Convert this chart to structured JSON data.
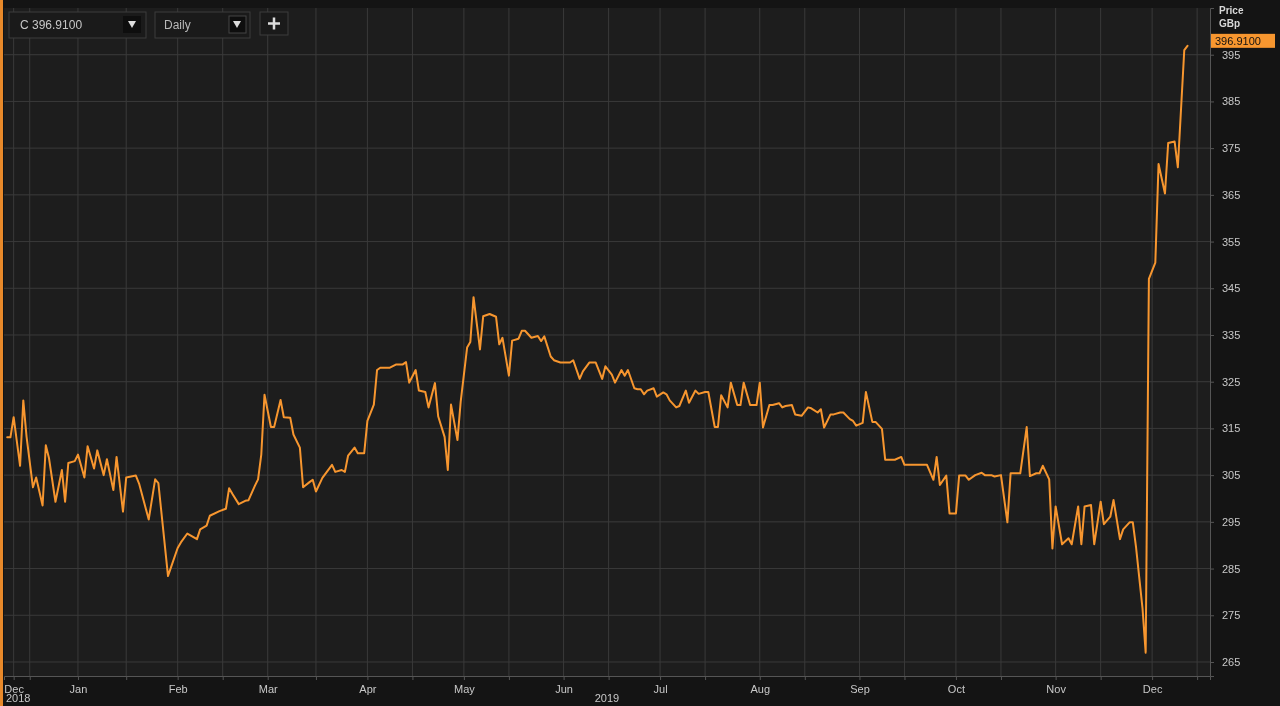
{
  "chart_data": {
    "type": "line",
    "ylabel": "Price GBp",
    "xlim": [
      "2018-12-09",
      "2019-12-19"
    ],
    "ylim": [
      262,
      405
    ],
    "yticks": [
      265,
      275,
      285,
      295,
      305,
      315,
      325,
      335,
      345,
      355,
      365,
      375,
      385,
      395
    ],
    "xticks": [
      {
        "value": "2018-12-12",
        "label": "Dec"
      },
      {
        "value": "2018-12-17",
        "label": null
      },
      {
        "value": "2019-01-01",
        "label": "Jan"
      },
      {
        "value": "2019-01-16",
        "label": null
      },
      {
        "value": "2019-02-01",
        "label": "Feb"
      },
      {
        "value": "2019-02-15",
        "label": null
      },
      {
        "value": "2019-03-01",
        "label": "Mar"
      },
      {
        "value": "2019-03-16",
        "label": null
      },
      {
        "value": "2019-04-01",
        "label": "Apr"
      },
      {
        "value": "2019-04-15",
        "label": null
      },
      {
        "value": "2019-05-01",
        "label": "May"
      },
      {
        "value": "2019-05-15",
        "label": null
      },
      {
        "value": "2019-06-01",
        "label": "Jun"
      },
      {
        "value": "2019-06-15",
        "label": null
      },
      {
        "value": "2019-07-01",
        "label": "Jul"
      },
      {
        "value": "2019-07-15",
        "label": null
      },
      {
        "value": "2019-08-01",
        "label": "Aug"
      },
      {
        "value": "2019-08-15",
        "label": null
      },
      {
        "value": "2019-09-01",
        "label": "Sep"
      },
      {
        "value": "2019-09-15",
        "label": null
      },
      {
        "value": "2019-10-01",
        "label": "Oct"
      },
      {
        "value": "2019-10-15",
        "label": null
      },
      {
        "value": "2019-11-01",
        "label": "Nov"
      },
      {
        "value": "2019-11-15",
        "label": null
      },
      {
        "value": "2019-12-01",
        "label": "Dec"
      },
      {
        "value": "2019-12-15",
        "label": null
      }
    ],
    "grid": true,
    "marker": "none",
    "line_style": "solid",
    "annotations": [
      "2018",
      "2019",
      "C 396.9100",
      "Daily",
      "396.9100"
    ],
    "series": [
      {
        "color": "#f7962f",
        "x": [
          "2018-12-10",
          "2018-12-11",
          "2018-12-12",
          "2018-12-14",
          "2018-12-15",
          "2018-12-16",
          "2018-12-18",
          "2018-12-19",
          "2018-12-21",
          "2018-12-22",
          "2018-12-23",
          "2018-12-25",
          "2018-12-27",
          "2018-12-28",
          "2018-12-29",
          "2018-12-31",
          "2019-01-01",
          "2019-01-03",
          "2019-01-04",
          "2019-01-06",
          "2019-01-07",
          "2019-01-09",
          "2019-01-10",
          "2019-01-12",
          "2019-01-13",
          "2019-01-15",
          "2019-01-16",
          "2019-01-19",
          "2019-01-20",
          "2019-01-23",
          "2019-01-25",
          "2019-01-26",
          "2019-01-29",
          "2019-01-30",
          "2019-02-01",
          "2019-02-02",
          "2019-02-04",
          "2019-02-07",
          "2019-02-08",
          "2019-02-10",
          "2019-02-11",
          "2019-02-14",
          "2019-02-16",
          "2019-02-17",
          "2019-02-18",
          "2019-02-20",
          "2019-02-22",
          "2019-02-23",
          "2019-02-25",
          "2019-02-26",
          "2019-02-27",
          "2019-02-28",
          "2019-03-02",
          "2019-03-03",
          "2019-03-05",
          "2019-03-06",
          "2019-03-08",
          "2019-03-09",
          "2019-03-11",
          "2019-03-12",
          "2019-03-14",
          "2019-03-15",
          "2019-03-16",
          "2019-03-18",
          "2019-03-21",
          "2019-03-22",
          "2019-03-24",
          "2019-03-25",
          "2019-03-26",
          "2019-03-28",
          "2019-03-29",
          "2019-03-31",
          "2019-04-01",
          "2019-04-03",
          "2019-04-04",
          "2019-04-05",
          "2019-04-08",
          "2019-04-10",
          "2019-04-12",
          "2019-04-13",
          "2019-04-14",
          "2019-04-16",
          "2019-04-17",
          "2019-04-19",
          "2019-04-20",
          "2019-04-22",
          "2019-04-23",
          "2019-04-25",
          "2019-04-26",
          "2019-04-27",
          "2019-04-29",
          "2019-04-30",
          "2019-05-02",
          "2019-05-03",
          "2019-05-04",
          "2019-05-06",
          "2019-05-07",
          "2019-05-09",
          "2019-05-11",
          "2019-05-12",
          "2019-05-13",
          "2019-05-15",
          "2019-05-16",
          "2019-05-18",
          "2019-05-19",
          "2019-05-20",
          "2019-05-22",
          "2019-05-24",
          "2019-05-25",
          "2019-05-26",
          "2019-05-28",
          "2019-05-29",
          "2019-05-31",
          "2019-06-03",
          "2019-06-04",
          "2019-06-06",
          "2019-06-07",
          "2019-06-09",
          "2019-06-11",
          "2019-06-13",
          "2019-06-14",
          "2019-06-16",
          "2019-06-17",
          "2019-06-19",
          "2019-06-20",
          "2019-06-21",
          "2019-06-23",
          "2019-06-24",
          "2019-06-25",
          "2019-06-26",
          "2019-06-27",
          "2019-06-29",
          "2019-06-30",
          "2019-07-02",
          "2019-07-03",
          "2019-07-04",
          "2019-07-06",
          "2019-07-07",
          "2019-07-09",
          "2019-07-10",
          "2019-07-12",
          "2019-07-13",
          "2019-07-15",
          "2019-07-16",
          "2019-07-18",
          "2019-07-19",
          "2019-07-20",
          "2019-07-22",
          "2019-07-23",
          "2019-07-25",
          "2019-07-26",
          "2019-07-27",
          "2019-07-29",
          "2019-07-31",
          "2019-08-01",
          "2019-08-02",
          "2019-08-04",
          "2019-08-05",
          "2019-08-07",
          "2019-08-08",
          "2019-08-09",
          "2019-08-11",
          "2019-08-12",
          "2019-08-14",
          "2019-08-16",
          "2019-08-17",
          "2019-08-19",
          "2019-08-20",
          "2019-08-21",
          "2019-08-23",
          "2019-08-24",
          "2019-08-26",
          "2019-08-27",
          "2019-08-29",
          "2019-08-30",
          "2019-08-31",
          "2019-09-02",
          "2019-09-03",
          "2019-09-05",
          "2019-09-06",
          "2019-09-08",
          "2019-09-09",
          "2019-09-11",
          "2019-09-12",
          "2019-09-14",
          "2019-09-15",
          "2019-09-16",
          "2019-09-22",
          "2019-09-24",
          "2019-09-25",
          "2019-09-26",
          "2019-09-28",
          "2019-09-29",
          "2019-10-01",
          "2019-10-02",
          "2019-10-04",
          "2019-10-05",
          "2019-10-07",
          "2019-10-09",
          "2019-10-10",
          "2019-10-12",
          "2019-10-13",
          "2019-10-15",
          "2019-10-17",
          "2019-10-18",
          "2019-10-21",
          "2019-10-23",
          "2019-10-24",
          "2019-10-26",
          "2019-10-27",
          "2019-10-28",
          "2019-10-30",
          "2019-10-31",
          "2019-11-01",
          "2019-11-03",
          "2019-11-05",
          "2019-11-06",
          "2019-11-08",
          "2019-11-09",
          "2019-11-10",
          "2019-11-12",
          "2019-11-13",
          "2019-11-15",
          "2019-11-16",
          "2019-11-18",
          "2019-11-19",
          "2019-11-21",
          "2019-11-22",
          "2019-11-24",
          "2019-11-25",
          "2019-11-26",
          "2019-11-28",
          "2019-11-29",
          "2019-11-30",
          "2019-12-02",
          "2019-12-03",
          "2019-12-05",
          "2019-12-06",
          "2019-12-08",
          "2019-12-09",
          "2019-12-11",
          "2019-12-12"
        ],
        "values": [
          313.1,
          313.1,
          317.4,
          307.0,
          321.0,
          313.3,
          302.4,
          304.5,
          298.5,
          311.4,
          308.6,
          299.3,
          306.1,
          299.3,
          307.6,
          308.0,
          309.4,
          304.5,
          311.2,
          306.4,
          310.3,
          305.0,
          308.4,
          301.8,
          308.9,
          297.2,
          304.5,
          304.9,
          303.2,
          295.5,
          304.1,
          303.3,
          283.4,
          285.4,
          289.4,
          290.6,
          292.5,
          291.3,
          293.4,
          294.2,
          296.3,
          297.3,
          297.8,
          302.2,
          301.0,
          298.8,
          299.5,
          299.6,
          302.7,
          304.1,
          309.4,
          322.2,
          315.3,
          315.3,
          321.1,
          317.4,
          317.3,
          313.7,
          310.9,
          302.4,
          303.5,
          304.0,
          301.5,
          304.4,
          307.2,
          305.7,
          306.1,
          305.7,
          309.2,
          310.9,
          309.7,
          309.7,
          316.6,
          320.1,
          327.5,
          328.0,
          328.0,
          328.7,
          328.7,
          329.2,
          324.8,
          327.5,
          323.1,
          322.8,
          319.5,
          324.7,
          317.6,
          313.2,
          306.1,
          320.1,
          312.5,
          320.7,
          332.3,
          333.5,
          343.1,
          331.9,
          339.0,
          339.5,
          338.9,
          333.0,
          334.4,
          326.3,
          333.8,
          334.2,
          335.9,
          335.9,
          334.4,
          334.8,
          333.7,
          334.7,
          330.4,
          329.6,
          329.1,
          329.1,
          329.6,
          325.6,
          327.2,
          329.1,
          329.1,
          325.6,
          328.3,
          326.5,
          324.8,
          327.5,
          326.3,
          327.5,
          323.6,
          323.4,
          323.4,
          322.3,
          323.1,
          323.6,
          321.8,
          322.7,
          322.3,
          321.0,
          319.5,
          319.8,
          323.1,
          320.5,
          323.1,
          322.4,
          322.8,
          322.8,
          315.3,
          315.3,
          322.1,
          319.5,
          324.8,
          320.0,
          320.0,
          324.8,
          320.0,
          320.0,
          324.8,
          315.2,
          320.0,
          320.0,
          320.4,
          319.5,
          319.8,
          320.0,
          318.0,
          317.7,
          319.5,
          319.3,
          318.4,
          319.1,
          315.2,
          318.0,
          318.0,
          318.4,
          318.4,
          317.0,
          316.6,
          315.6,
          316.2,
          322.8,
          316.4,
          316.4,
          314.9,
          308.3,
          308.3,
          308.3,
          308.9,
          307.2,
          307.2,
          307.2,
          304.0,
          308.9,
          302.9,
          304.9,
          296.8,
          296.8,
          304.9,
          304.9,
          304.0,
          305.0,
          305.5,
          305.0,
          305.0,
          304.7,
          305.0,
          294.9,
          305.4,
          305.4,
          315.3,
          304.8,
          305.4,
          305.4,
          307.0,
          304.1,
          289.3,
          298.3,
          290.2,
          291.5,
          290.2,
          298.3,
          290.2,
          298.3,
          298.6,
          290.2,
          299.3,
          294.5,
          296.1,
          299.7,
          291.3,
          293.4,
          294.9,
          294.9,
          289.6,
          276.6,
          267.0,
          347.0,
          350.5,
          371.6,
          365.3,
          376.1,
          376.4,
          370.9,
          396.0,
          396.9
        ]
      }
    ]
  }
}
